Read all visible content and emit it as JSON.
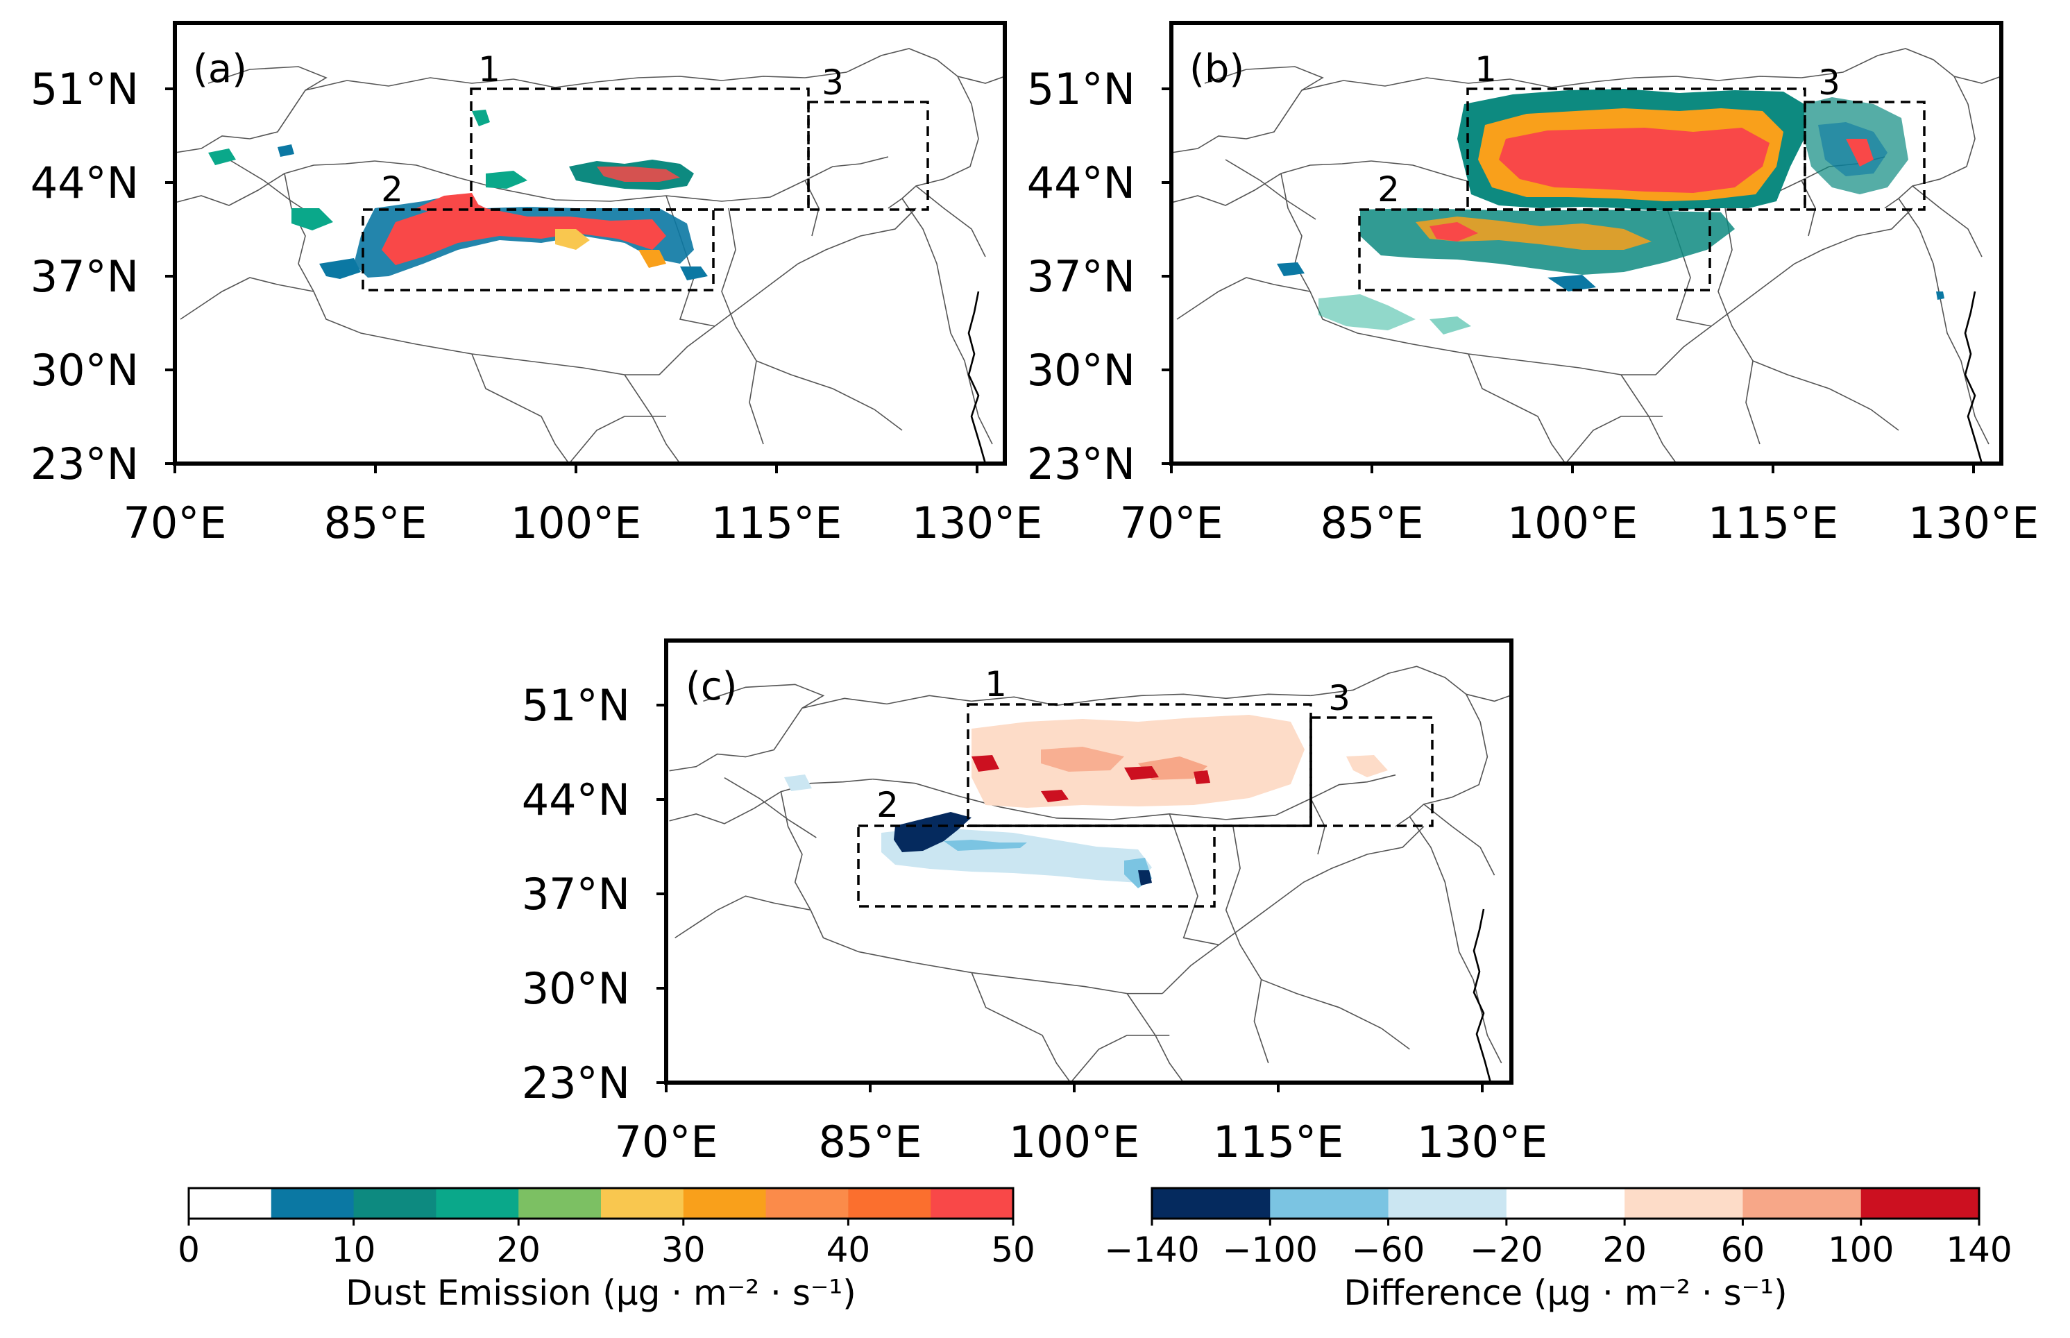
{
  "figure": {
    "panels": [
      {
        "id": "a",
        "tag": "(a)"
      },
      {
        "id": "b",
        "tag": "(b)"
      },
      {
        "id": "c",
        "tag": "(c)"
      }
    ],
    "lat_ticks": [
      "51°N",
      "44°N",
      "37°N",
      "30°N",
      "23°N"
    ],
    "lon_ticks": [
      "70°E",
      "85°E",
      "100°E",
      "115°E",
      "130°E"
    ],
    "region_boxes": [
      {
        "label": "1",
        "lon": [
          92,
          117
        ],
        "lat": [
          42,
          51
        ]
      },
      {
        "label": "2",
        "lon": [
          84,
          110
        ],
        "lat": [
          36,
          42
        ]
      },
      {
        "label": "3",
        "lon": [
          117,
          126
        ],
        "lat": [
          42,
          50
        ]
      }
    ],
    "colorbars": {
      "emission": {
        "title": "Dust Emission (μg · m⁻² · s⁻¹)",
        "ticks": [
          "0",
          "10",
          "20",
          "30",
          "40",
          "50"
        ],
        "colors": [
          "#ffffff",
          "#0b78a3",
          "#0d8a80",
          "#0aa88a",
          "#7cc063",
          "#f9c74f",
          "#f9a01b",
          "#fb8b4a",
          "#fb6f2e",
          "#f94848"
        ]
      },
      "difference": {
        "title": "Difference (μg · m⁻² · s⁻¹)",
        "ticks": [
          "−140",
          "−100",
          "−60",
          "−20",
          "20",
          "60",
          "100",
          "140"
        ],
        "colors": [
          "#052a5e",
          "#7bc4e2",
          "#cbe6f2",
          "#ffffff",
          "#fddcc8",
          "#f7a788",
          "#cc1020"
        ]
      }
    }
  }
}
